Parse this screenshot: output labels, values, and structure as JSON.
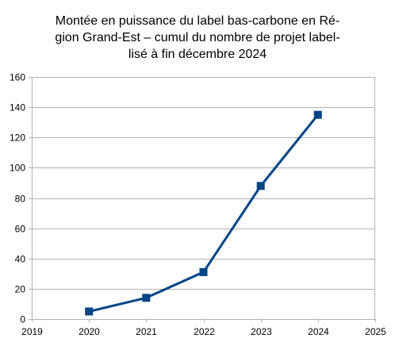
{
  "chart_data": {
    "type": "line",
    "title_lines": [
      "Montée en puissance du label bas-carbone en Ré-",
      "gion Grand-Est – cumul du nombre de projet label-",
      "lisé à fin décembre  2024"
    ],
    "x": [
      2020,
      2021,
      2022,
      2023,
      2024
    ],
    "series": [
      {
        "values": [
          5,
          14,
          31,
          88,
          135
        ],
        "color": "#004586"
      }
    ],
    "xlim": [
      2019,
      2025
    ],
    "ylim": [
      0,
      160
    ],
    "xticks": [
      "2019",
      "2020",
      "2021",
      "2022",
      "2023",
      "2024",
      "2025"
    ],
    "yticks": [
      "0",
      "20",
      "40",
      "60",
      "80",
      "100",
      "120",
      "140",
      "160"
    ],
    "grid": "horizontal",
    "legend": "none",
    "colors": {
      "grid": "#b3b3b3",
      "axis": "#b3b3b3",
      "series": "#004586"
    }
  }
}
